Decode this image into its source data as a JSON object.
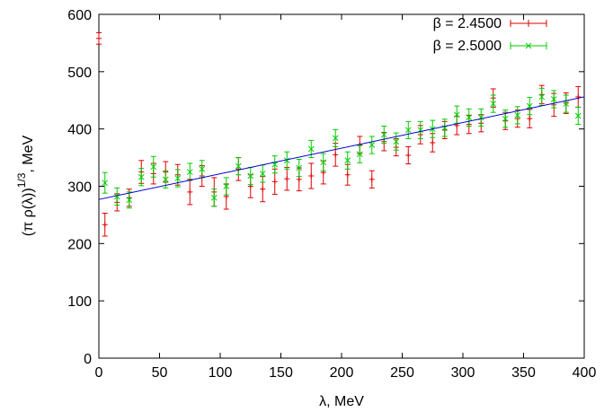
{
  "chart_data": {
    "type": "scatter",
    "xlabel": "λ, MeV",
    "ylabel_base": "(π ρ(λ))",
    "ylabel_sup": "1/3",
    "ylabel_tail": ", MeV",
    "xlim": [
      0,
      400
    ],
    "ylim": [
      0,
      600
    ],
    "xticks": [
      0,
      50,
      100,
      150,
      200,
      250,
      300,
      350,
      400
    ],
    "yticks": [
      0,
      100,
      200,
      300,
      400,
      500,
      600
    ],
    "grid": false,
    "legend_position": "top-right",
    "series": [
      {
        "name": "β = 2.4500",
        "color": "#e00000",
        "marker": "plus",
        "points": [
          [
            0,
            558,
            10
          ],
          [
            5,
            233,
            20
          ],
          [
            15,
            272,
            15
          ],
          [
            25,
            280,
            15
          ],
          [
            35,
            325,
            20
          ],
          [
            45,
            322,
            18
          ],
          [
            55,
            325,
            18
          ],
          [
            65,
            320,
            18
          ],
          [
            75,
            290,
            22
          ],
          [
            85,
            318,
            18
          ],
          [
            95,
            290,
            25
          ],
          [
            105,
            282,
            22
          ],
          [
            115,
            330,
            20
          ],
          [
            125,
            300,
            20
          ],
          [
            135,
            295,
            22
          ],
          [
            145,
            308,
            22
          ],
          [
            155,
            313,
            20
          ],
          [
            165,
            312,
            20
          ],
          [
            175,
            318,
            22
          ],
          [
            185,
            324,
            20
          ],
          [
            195,
            355,
            20
          ],
          [
            205,
            320,
            18
          ],
          [
            215,
            372,
            15
          ],
          [
            225,
            312,
            15
          ],
          [
            235,
            378,
            16
          ],
          [
            245,
            368,
            15
          ],
          [
            255,
            354,
            15
          ],
          [
            265,
            390,
            16
          ],
          [
            275,
            376,
            16
          ],
          [
            285,
            398,
            15
          ],
          [
            295,
            406,
            16
          ],
          [
            305,
            408,
            16
          ],
          [
            315,
            410,
            15
          ],
          [
            325,
            454,
            16
          ],
          [
            335,
            414,
            15
          ],
          [
            345,
            418,
            15
          ],
          [
            355,
            418,
            16
          ],
          [
            365,
            460,
            16
          ],
          [
            375,
            442,
            20
          ],
          [
            385,
            445,
            18
          ],
          [
            395,
            456,
            18
          ]
        ]
      },
      {
        "name": "β = 2.5000",
        "color": "#00cc00",
        "marker": "cross",
        "points": [
          [
            5,
            306,
            18
          ],
          [
            15,
            282,
            15
          ],
          [
            25,
            276,
            14
          ],
          [
            35,
            316,
            15
          ],
          [
            45,
            334,
            18
          ],
          [
            55,
            312,
            15
          ],
          [
            65,
            314,
            15
          ],
          [
            75,
            325,
            15
          ],
          [
            85,
            330,
            15
          ],
          [
            95,
            280,
            15
          ],
          [
            105,
            300,
            15
          ],
          [
            115,
            335,
            15
          ],
          [
            125,
            318,
            15
          ],
          [
            135,
            322,
            15
          ],
          [
            145,
            338,
            15
          ],
          [
            155,
            345,
            15
          ],
          [
            165,
            332,
            15
          ],
          [
            175,
            365,
            15
          ],
          [
            185,
            342,
            15
          ],
          [
            195,
            384,
            15
          ],
          [
            205,
            345,
            15
          ],
          [
            215,
            356,
            15
          ],
          [
            225,
            372,
            15
          ],
          [
            235,
            390,
            15
          ],
          [
            245,
            378,
            15
          ],
          [
            255,
            398,
            15
          ],
          [
            265,
            398,
            15
          ],
          [
            275,
            400,
            15
          ],
          [
            285,
            402,
            15
          ],
          [
            295,
            425,
            15
          ],
          [
            305,
            420,
            15
          ],
          [
            315,
            420,
            15
          ],
          [
            325,
            444,
            15
          ],
          [
            335,
            418,
            15
          ],
          [
            345,
            424,
            15
          ],
          [
            355,
            440,
            15
          ],
          [
            365,
            456,
            15
          ],
          [
            375,
            452,
            15
          ],
          [
            385,
            444,
            15
          ],
          [
            395,
            423,
            15
          ]
        ]
      }
    ],
    "fit_line": {
      "color": "#0000cc",
      "x": [
        0,
        400
      ],
      "y": [
        277,
        456
      ]
    }
  }
}
